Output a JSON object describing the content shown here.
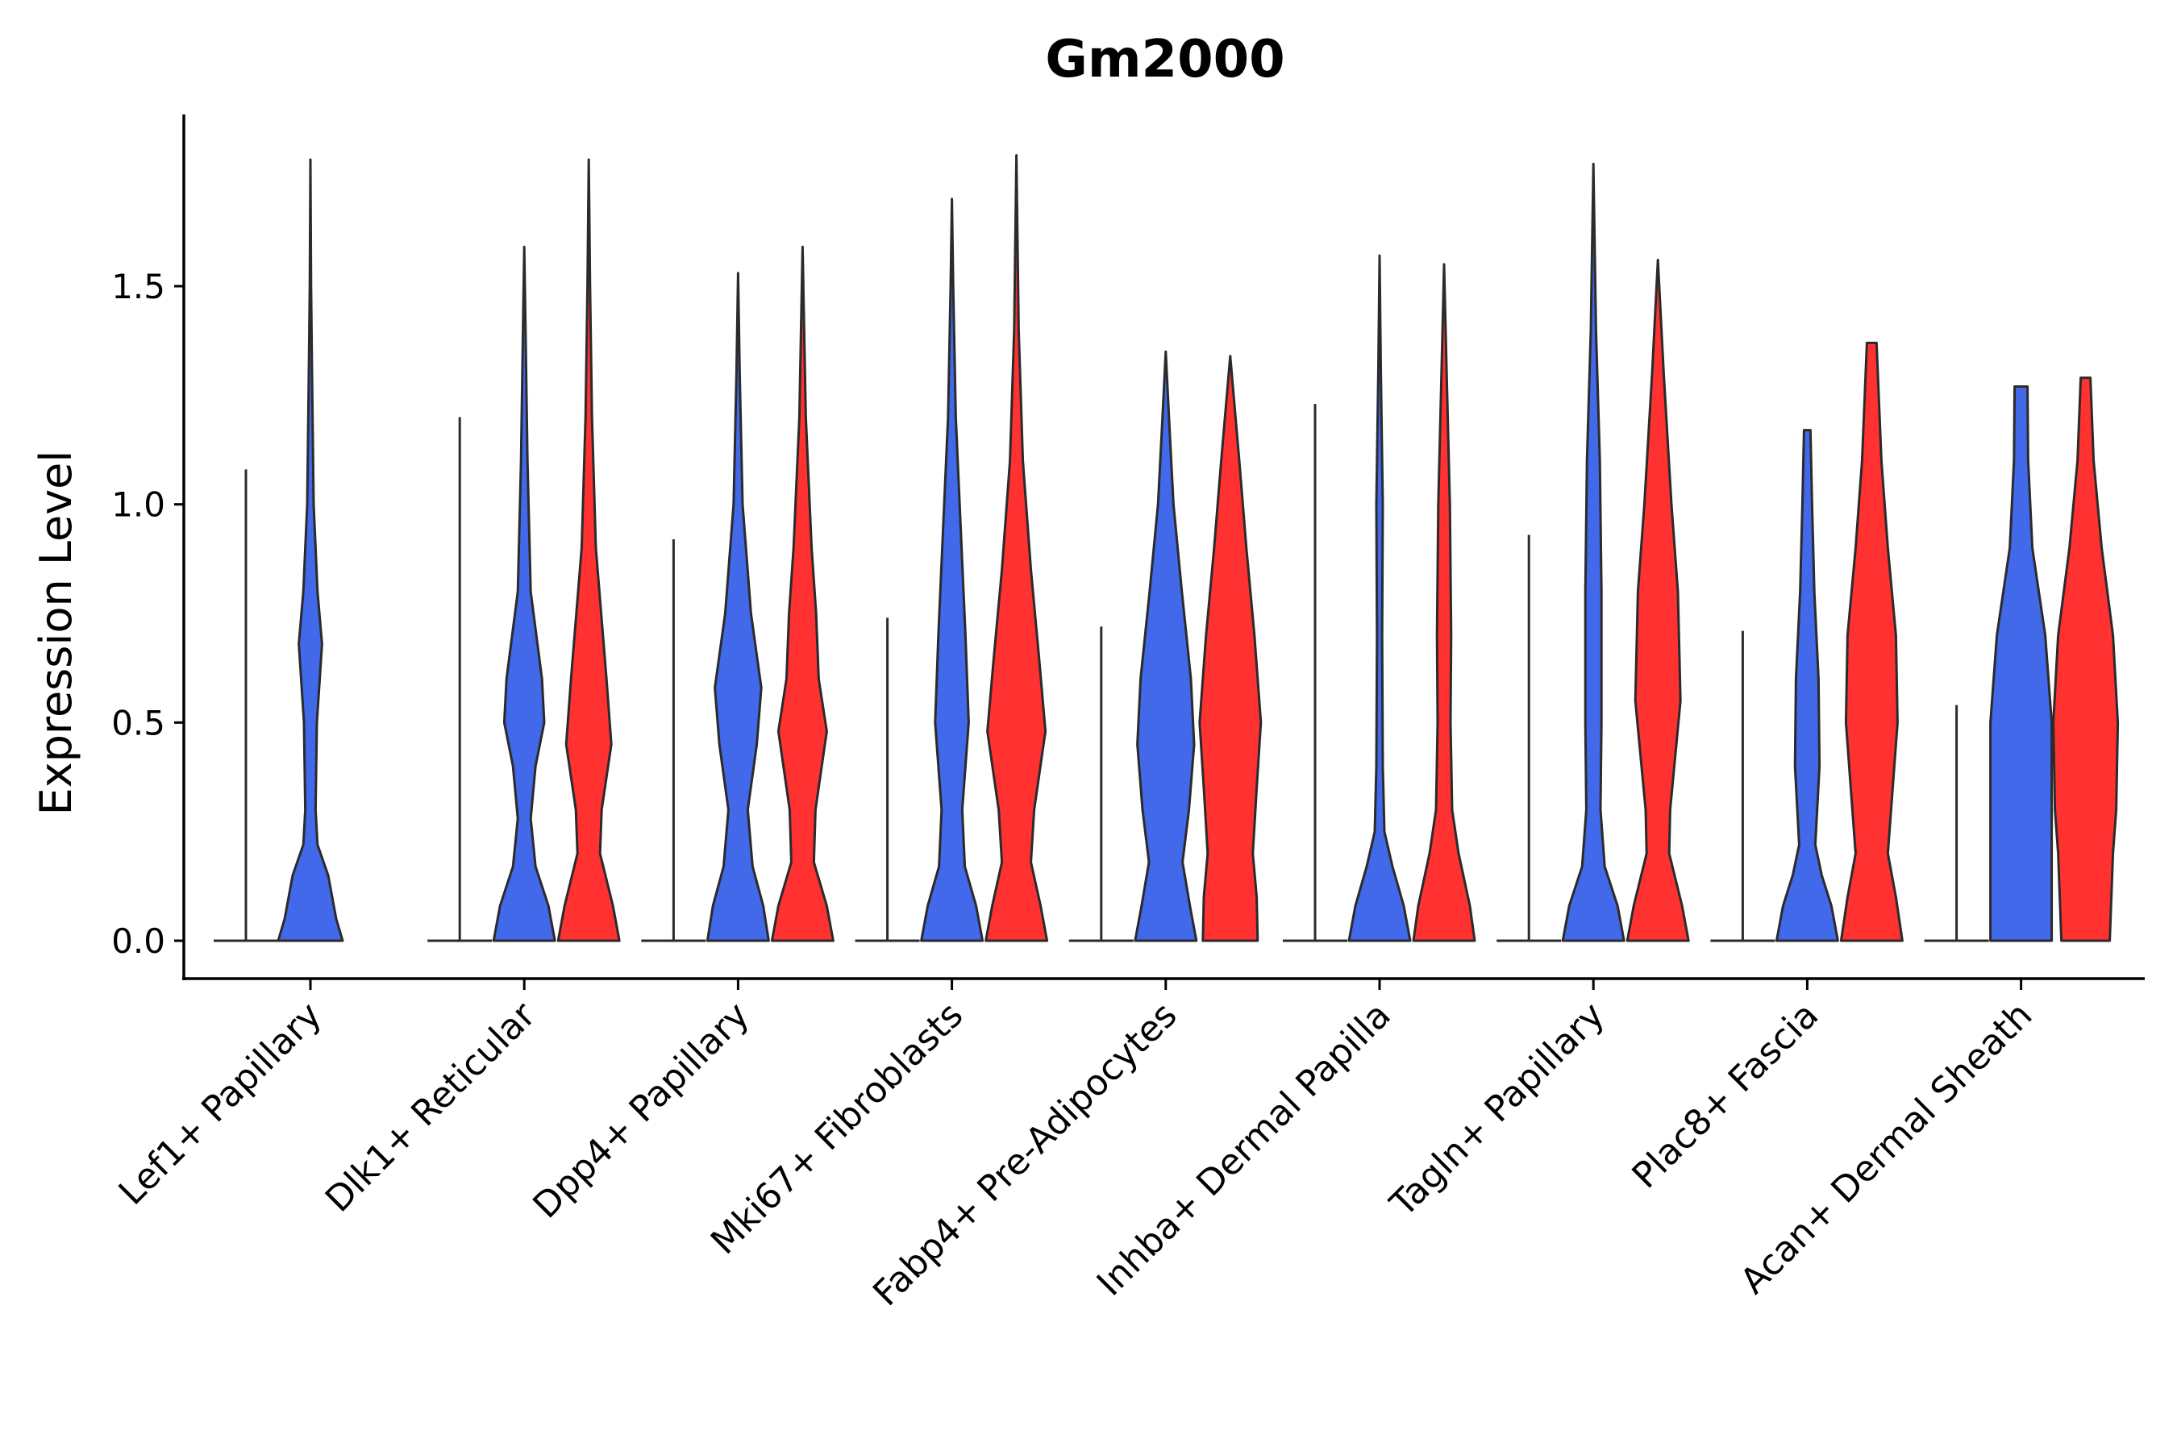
{
  "chart_data": {
    "type": "violin",
    "title": "Gm2000",
    "xlabel": "",
    "ylabel": "Expression Level",
    "ylim": [
      -0.09,
      1.89
    ],
    "yticks": [
      0.0,
      0.5,
      1.0,
      1.5
    ],
    "ytick_labels": [
      "0.0",
      "0.5",
      "1.0",
      "1.5"
    ],
    "series_colors": [
      "#f4f4f4",
      "#4169e9",
      "#ff3131"
    ],
    "categories": [
      "Lef1+ Papillary",
      "Dlk1+ Reticular",
      "Dpp4+ Papillary",
      "Mki67+ Fibroblasts",
      "Fabp4+ Pre-Adipocytes",
      "Inhba+ Dermal Papilla",
      "Tagln+ Papillary",
      "Plac8+ Fascia",
      "Acan+ Dermal Sheath"
    ],
    "violins": [
      [
        {
          "max": 1.08,
          "profile": [
            [
              0.0,
              0.5
            ],
            [
              0.003,
              0.0
            ]
          ]
        },
        {
          "max": 1.79,
          "profile": [
            [
              0.0,
              1.0
            ],
            [
              0.05,
              0.8
            ],
            [
              0.15,
              0.55
            ],
            [
              0.22,
              0.22
            ],
            [
              0.3,
              0.16
            ],
            [
              0.5,
              0.2
            ],
            [
              0.68,
              0.36
            ],
            [
              0.8,
              0.22
            ],
            [
              1.0,
              0.1
            ],
            [
              1.3,
              0.05
            ],
            [
              1.5,
              0.02
            ],
            [
              1.79,
              0.0
            ]
          ]
        },
        {
          "max": 0.0,
          "profile": []
        }
      ],
      [
        {
          "max": 1.2,
          "profile": [
            [
              0.0,
              0.5
            ],
            [
              0.003,
              0.0
            ]
          ]
        },
        {
          "max": 1.59,
          "profile": [
            [
              0.0,
              0.95
            ],
            [
              0.08,
              0.75
            ],
            [
              0.17,
              0.35
            ],
            [
              0.28,
              0.2
            ],
            [
              0.4,
              0.35
            ],
            [
              0.5,
              0.62
            ],
            [
              0.6,
              0.55
            ],
            [
              0.8,
              0.2
            ],
            [
              1.1,
              0.1
            ],
            [
              1.4,
              0.04
            ],
            [
              1.59,
              0.0
            ]
          ]
        },
        {
          "max": 1.79,
          "profile": [
            [
              0.0,
              0.95
            ],
            [
              0.08,
              0.75
            ],
            [
              0.2,
              0.35
            ],
            [
              0.3,
              0.4
            ],
            [
              0.45,
              0.7
            ],
            [
              0.6,
              0.55
            ],
            [
              0.9,
              0.22
            ],
            [
              1.2,
              0.1
            ],
            [
              1.5,
              0.04
            ],
            [
              1.79,
              0.0
            ]
          ]
        }
      ],
      [
        {
          "max": 0.92,
          "profile": [
            [
              0.0,
              0.5
            ],
            [
              0.003,
              0.0
            ]
          ]
        },
        {
          "max": 1.53,
          "profile": [
            [
              0.0,
              0.95
            ],
            [
              0.08,
              0.78
            ],
            [
              0.17,
              0.45
            ],
            [
              0.3,
              0.3
            ],
            [
              0.45,
              0.58
            ],
            [
              0.58,
              0.72
            ],
            [
              0.75,
              0.4
            ],
            [
              1.0,
              0.14
            ],
            [
              1.3,
              0.05
            ],
            [
              1.53,
              0.0
            ]
          ]
        },
        {
          "max": 1.59,
          "profile": [
            [
              0.0,
              0.95
            ],
            [
              0.08,
              0.75
            ],
            [
              0.18,
              0.35
            ],
            [
              0.3,
              0.4
            ],
            [
              0.48,
              0.75
            ],
            [
              0.6,
              0.5
            ],
            [
              0.75,
              0.42
            ],
            [
              0.9,
              0.28
            ],
            [
              1.2,
              0.1
            ],
            [
              1.59,
              0.0
            ]
          ]
        }
      ],
      [
        {
          "max": 0.74,
          "profile": [
            [
              0.0,
              0.5
            ],
            [
              0.003,
              0.0
            ]
          ]
        },
        {
          "max": 1.7,
          "profile": [
            [
              0.0,
              0.95
            ],
            [
              0.08,
              0.75
            ],
            [
              0.17,
              0.4
            ],
            [
              0.3,
              0.32
            ],
            [
              0.5,
              0.52
            ],
            [
              0.7,
              0.42
            ],
            [
              0.9,
              0.3
            ],
            [
              1.2,
              0.12
            ],
            [
              1.5,
              0.04
            ],
            [
              1.7,
              0.0
            ]
          ]
        },
        {
          "max": 1.8,
          "profile": [
            [
              0.0,
              0.95
            ],
            [
              0.08,
              0.75
            ],
            [
              0.18,
              0.45
            ],
            [
              0.3,
              0.55
            ],
            [
              0.48,
              0.9
            ],
            [
              0.65,
              0.7
            ],
            [
              0.85,
              0.45
            ],
            [
              1.1,
              0.2
            ],
            [
              1.4,
              0.07
            ],
            [
              1.8,
              0.0
            ]
          ]
        }
      ],
      [
        {
          "max": 0.72,
          "profile": [
            [
              0.0,
              0.5
            ],
            [
              0.003,
              0.0
            ]
          ]
        },
        {
          "max": 1.35,
          "profile": [
            [
              0.0,
              0.95
            ],
            [
              0.08,
              0.75
            ],
            [
              0.18,
              0.52
            ],
            [
              0.3,
              0.72
            ],
            [
              0.45,
              0.88
            ],
            [
              0.6,
              0.78
            ],
            [
              0.8,
              0.5
            ],
            [
              1.0,
              0.24
            ],
            [
              1.2,
              0.1
            ],
            [
              1.35,
              0.0
            ]
          ]
        },
        {
          "max": 1.34,
          "profile": [
            [
              0.0,
              0.85
            ],
            [
              0.1,
              0.82
            ],
            [
              0.2,
              0.7
            ],
            [
              0.35,
              0.82
            ],
            [
              0.5,
              0.95
            ],
            [
              0.7,
              0.75
            ],
            [
              0.9,
              0.5
            ],
            [
              1.1,
              0.28
            ],
            [
              1.34,
              0.0
            ]
          ]
        }
      ],
      [
        {
          "max": 1.23,
          "profile": [
            [
              0.0,
              0.5
            ],
            [
              0.003,
              0.0
            ]
          ]
        },
        {
          "max": 1.57,
          "profile": [
            [
              0.0,
              0.95
            ],
            [
              0.08,
              0.75
            ],
            [
              0.17,
              0.4
            ],
            [
              0.25,
              0.15
            ],
            [
              0.4,
              0.1
            ],
            [
              0.7,
              0.08
            ],
            [
              1.0,
              0.1
            ],
            [
              1.3,
              0.04
            ],
            [
              1.57,
              0.0
            ]
          ]
        },
        {
          "max": 1.55,
          "profile": [
            [
              0.0,
              0.95
            ],
            [
              0.08,
              0.8
            ],
            [
              0.2,
              0.45
            ],
            [
              0.3,
              0.25
            ],
            [
              0.5,
              0.2
            ],
            [
              0.7,
              0.22
            ],
            [
              1.0,
              0.18
            ],
            [
              1.3,
              0.08
            ],
            [
              1.55,
              0.0
            ]
          ]
        }
      ],
      [
        {
          "max": 0.93,
          "profile": [
            [
              0.0,
              0.5
            ],
            [
              0.003,
              0.0
            ]
          ]
        },
        {
          "max": 1.78,
          "profile": [
            [
              0.0,
              0.95
            ],
            [
              0.08,
              0.75
            ],
            [
              0.17,
              0.35
            ],
            [
              0.3,
              0.22
            ],
            [
              0.5,
              0.25
            ],
            [
              0.8,
              0.25
            ],
            [
              1.1,
              0.2
            ],
            [
              1.4,
              0.08
            ],
            [
              1.78,
              0.0
            ]
          ]
        },
        {
          "max": 1.56,
          "profile": [
            [
              0.0,
              0.95
            ],
            [
              0.08,
              0.75
            ],
            [
              0.2,
              0.35
            ],
            [
              0.3,
              0.38
            ],
            [
              0.55,
              0.7
            ],
            [
              0.8,
              0.62
            ],
            [
              1.0,
              0.42
            ],
            [
              1.3,
              0.18
            ],
            [
              1.56,
              0.0
            ]
          ]
        }
      ],
      [
        {
          "max": 0.71,
          "profile": [
            [
              0.0,
              0.5
            ],
            [
              0.003,
              0.0
            ]
          ]
        },
        {
          "max": 1.17,
          "profile": [
            [
              0.0,
              0.95
            ],
            [
              0.08,
              0.75
            ],
            [
              0.15,
              0.45
            ],
            [
              0.22,
              0.25
            ],
            [
              0.4,
              0.38
            ],
            [
              0.6,
              0.35
            ],
            [
              0.8,
              0.22
            ],
            [
              1.0,
              0.15
            ],
            [
              1.17,
              0.1
            ]
          ]
        },
        {
          "max": 1.37,
          "profile": [
            [
              0.0,
              0.95
            ],
            [
              0.1,
              0.75
            ],
            [
              0.2,
              0.5
            ],
            [
              0.3,
              0.6
            ],
            [
              0.5,
              0.8
            ],
            [
              0.7,
              0.75
            ],
            [
              0.9,
              0.5
            ],
            [
              1.1,
              0.3
            ],
            [
              1.37,
              0.15
            ]
          ]
        }
      ],
      [
        {
          "max": 0.54,
          "profile": [
            [
              0.0,
              0.5
            ],
            [
              0.003,
              0.0
            ]
          ]
        },
        {
          "max": 1.27,
          "profile": [
            [
              0.0,
              0.95
            ],
            [
              0.15,
              0.95
            ],
            [
              0.3,
              0.95
            ],
            [
              0.5,
              0.95
            ],
            [
              0.7,
              0.75
            ],
            [
              0.9,
              0.35
            ],
            [
              1.1,
              0.22
            ],
            [
              1.27,
              0.2
            ]
          ]
        },
        {
          "max": 1.29,
          "profile": [
            [
              0.0,
              0.75
            ],
            [
              0.2,
              0.85
            ],
            [
              0.3,
              0.95
            ],
            [
              0.5,
              1.0
            ],
            [
              0.7,
              0.85
            ],
            [
              0.9,
              0.5
            ],
            [
              1.1,
              0.25
            ],
            [
              1.29,
              0.15
            ]
          ]
        }
      ]
    ]
  }
}
